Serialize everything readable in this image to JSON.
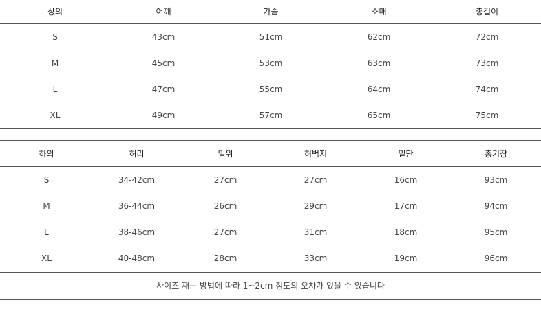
{
  "top_table": {
    "headers": [
      "상의",
      "어깨",
      "가슴",
      "소매",
      "총길이"
    ],
    "rows": [
      [
        "S",
        "43cm",
        "51cm",
        "62cm",
        "72cm"
      ],
      [
        "M",
        "45cm",
        "53cm",
        "63cm",
        "73cm"
      ],
      [
        "L",
        "47cm",
        "55cm",
        "64cm",
        "74cm"
      ],
      [
        "XL",
        "49cm",
        "57cm",
        "65cm",
        "75cm"
      ]
    ]
  },
  "bottom_table": {
    "headers": [
      "하의",
      "허리",
      "밑위",
      "허벅지",
      "밑단",
      "총기장"
    ],
    "rows": [
      [
        "S",
        "34-42cm",
        "27cm",
        "27cm",
        "16cm",
        "93cm"
      ],
      [
        "M",
        "36-44cm",
        "26cm",
        "29cm",
        "17cm",
        "94cm"
      ],
      [
        "L",
        "38-46cm",
        "27cm",
        "31cm",
        "18cm",
        "95cm"
      ],
      [
        "XL",
        "40-48cm",
        "28cm",
        "33cm",
        "19cm",
        "96cm"
      ]
    ]
  },
  "note": "사이즈 재는 방법에 따라 1~2cm 정도의 오차가 있을 수 있습니다"
}
